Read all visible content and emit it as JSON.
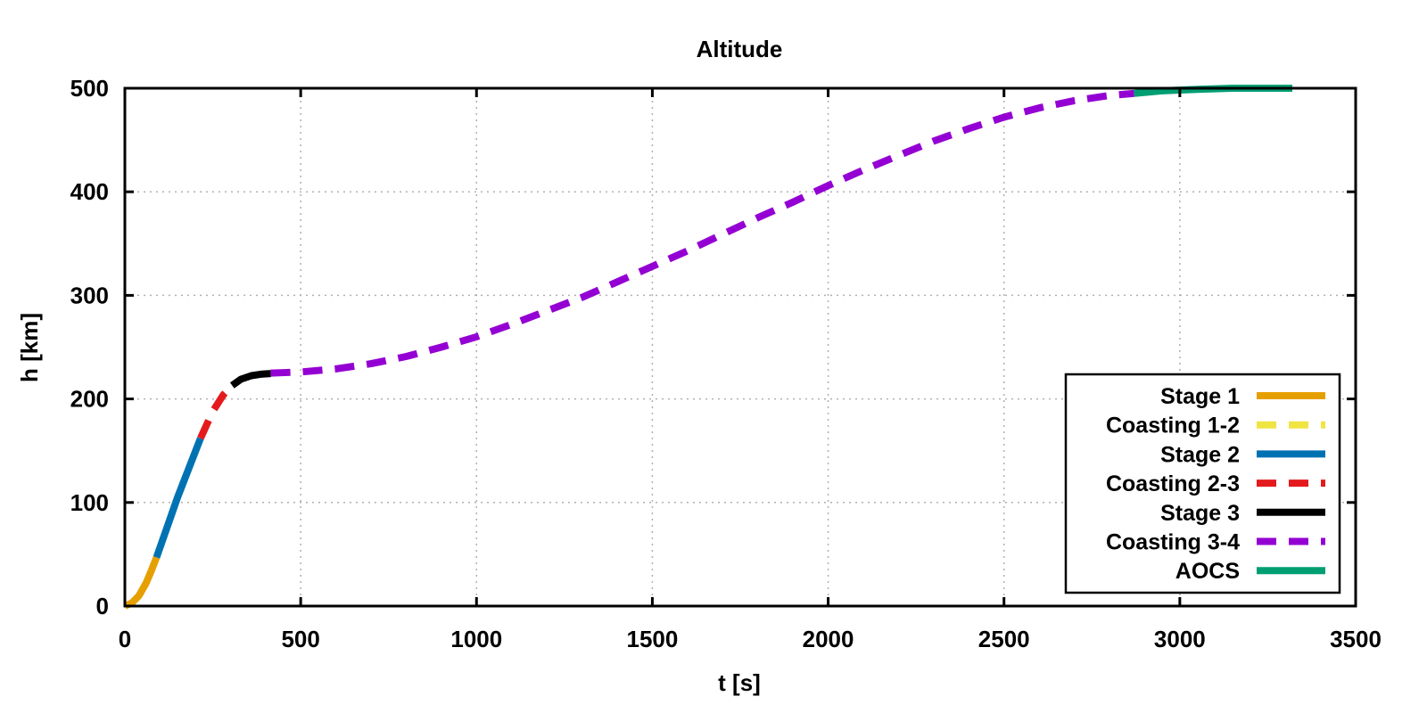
{
  "chart_data": {
    "type": "line",
    "title": "Altitude",
    "xlabel": "t [s]",
    "ylabel": "h [km]",
    "xlim": [
      0,
      3500
    ],
    "ylim": [
      0,
      500
    ],
    "xticks": [
      0,
      500,
      1000,
      1500,
      2000,
      2500,
      3000,
      3500
    ],
    "yticks": [
      0,
      100,
      200,
      300,
      400,
      500
    ],
    "grid": true,
    "legend_position": "bottom-right",
    "series": [
      {
        "name": "Stage 1",
        "color": "#E69F00",
        "dashed": false,
        "x": [
          0,
          20,
          40,
          60,
          75,
          90
        ],
        "y": [
          0,
          3,
          10,
          22,
          34,
          47
        ]
      },
      {
        "name": "Coasting 1-2",
        "color": "#F0E442",
        "dashed": true,
        "x": [],
        "y": []
      },
      {
        "name": "Stage 2",
        "color": "#0072B2",
        "dashed": false,
        "x": [
          90,
          150,
          215
        ],
        "y": [
          47,
          105,
          162
        ]
      },
      {
        "name": "Coasting 2-3",
        "color": "#E41A1C",
        "dashed": true,
        "x": [
          215,
          250,
          280,
          305
        ],
        "y": [
          162,
          188,
          204,
          213
        ]
      },
      {
        "name": "Stage 3",
        "color": "#000000",
        "dashed": false,
        "x": [
          305,
          330,
          360,
          390,
          415
        ],
        "y": [
          213,
          219,
          222.5,
          224,
          224.5
        ]
      },
      {
        "name": "Coasting 3-4",
        "color": "#9400D3",
        "dashed": true,
        "x": [
          415,
          500,
          600,
          700,
          800,
          900,
          1000,
          1100,
          1200,
          1300,
          1400,
          1500,
          1600,
          1700,
          1800,
          1900,
          2000,
          2100,
          2200,
          2300,
          2400,
          2500,
          2600,
          2700,
          2800,
          2870
        ],
        "y": [
          225,
          226,
          229,
          234,
          241,
          250,
          260,
          272,
          285,
          298,
          313,
          328,
          343,
          359,
          375,
          390,
          406,
          421,
          435,
          449,
          461,
          472,
          481,
          488,
          493,
          495
        ]
      },
      {
        "name": "AOCS",
        "color": "#009E73",
        "dashed": false,
        "x": [
          2870,
          2950,
          3050,
          3150,
          3250,
          3320
        ],
        "y": [
          495,
          497.5,
          499,
          500,
          500,
          500
        ]
      }
    ]
  }
}
